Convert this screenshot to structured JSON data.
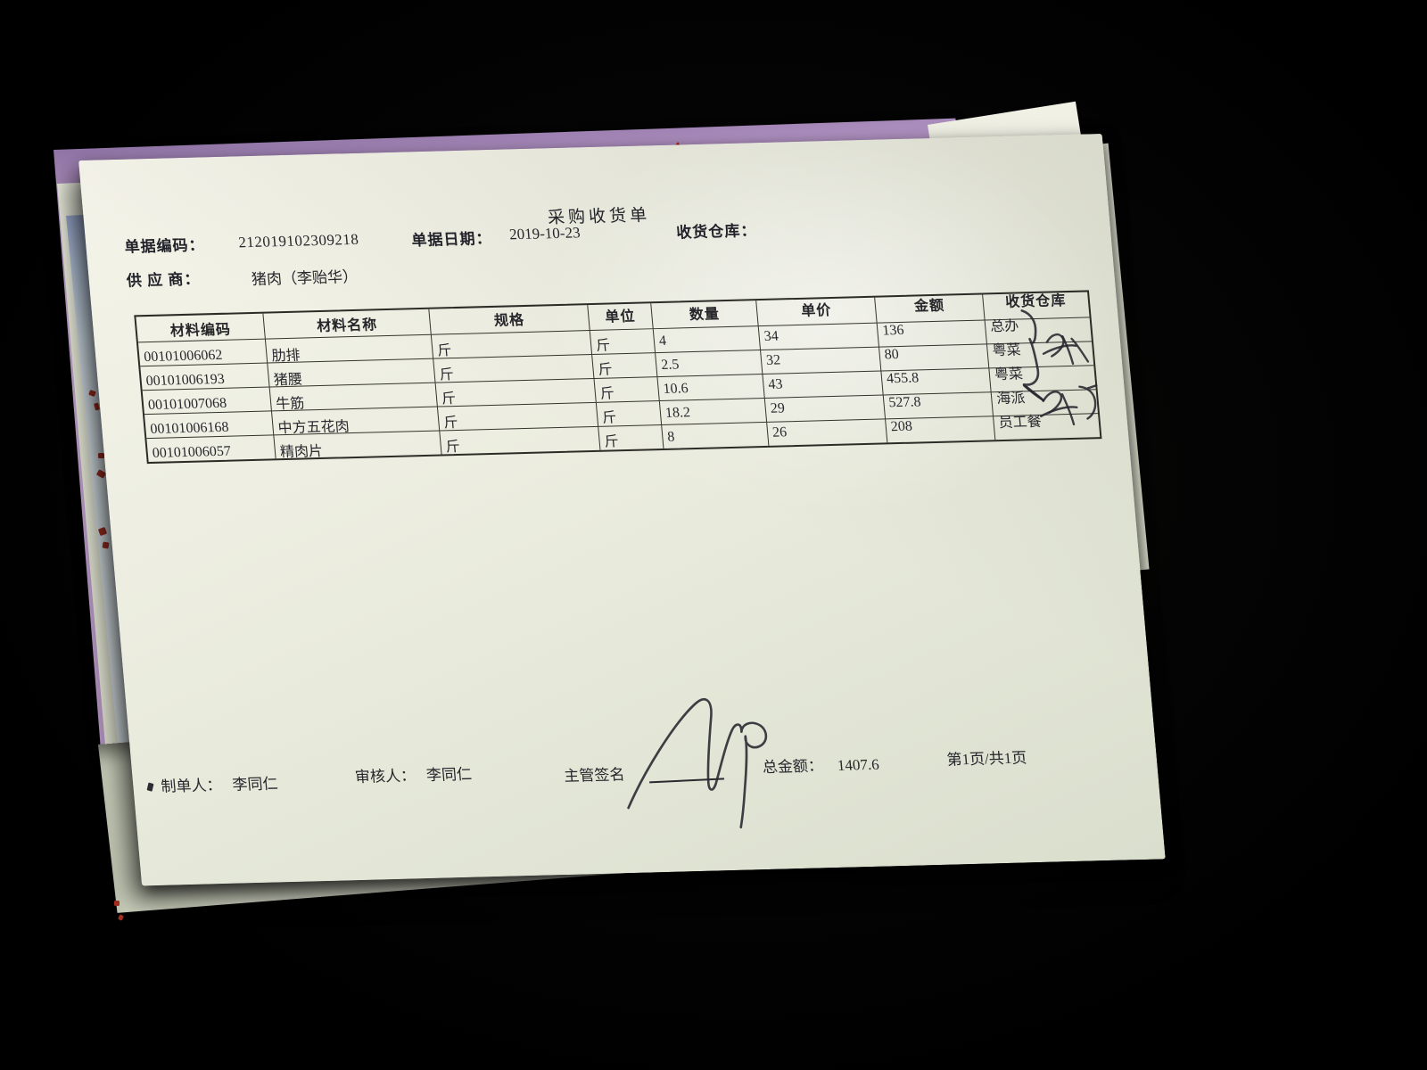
{
  "document": {
    "title": "采购收货单",
    "fields": {
      "doc_code_label": "单据编码：",
      "doc_code": "212019102309218",
      "doc_date_label": "单据日期：",
      "doc_date": "2019-10-23",
      "warehouse_label": "收货仓库：",
      "supplier_label": "供 应 商：",
      "supplier": "猪肉（李贻华）"
    },
    "table": {
      "headers": [
        "材料编码",
        "材料名称",
        "规格",
        "单位",
        "数量",
        "单价",
        "金额",
        "收货仓库"
      ],
      "rows": [
        [
          "00101006062",
          "肋排",
          "斤",
          "斤",
          "4",
          "34",
          "136",
          "总办"
        ],
        [
          "00101006193",
          "猪腰",
          "斤",
          "斤",
          "2.5",
          "32",
          "80",
          "粤菜"
        ],
        [
          "00101007068",
          "牛筋",
          "斤",
          "斤",
          "10.6",
          "43",
          "455.8",
          "粤菜"
        ],
        [
          "00101006168",
          "中方五花肉",
          "斤",
          "斤",
          "18.2",
          "29",
          "527.8",
          "海派"
        ],
        [
          "00101006057",
          "精肉片",
          "斤",
          "斤",
          "8",
          "26",
          "208",
          "员工餐"
        ]
      ]
    },
    "footer": {
      "preparer_label": "制单人：",
      "preparer": "李同仁",
      "reviewer_label": "审核人：",
      "reviewer": "李同仁",
      "supervisor_sign_label": "主管签名",
      "total_label": "总金额：",
      "total": "1407.6",
      "page_info": "第1页/共1页"
    }
  }
}
